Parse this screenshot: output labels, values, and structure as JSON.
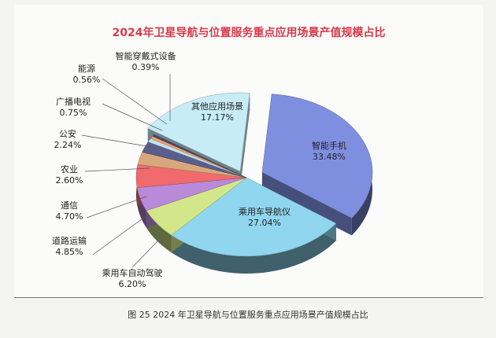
{
  "chart_data": {
    "type": "pie",
    "title": "2024年卫星导航与位置服务重点应用场景产值规模占比",
    "unit": "%",
    "slices": [
      {
        "label": "智能手机",
        "value": 33.48,
        "display": "33.48%",
        "color": "#7f8fe0",
        "exploded": true
      },
      {
        "label": "乘用车导航仪",
        "value": 27.04,
        "display": "27.04%",
        "color": "#8fd6ee"
      },
      {
        "label": "乘用车自动驾驶",
        "value": 6.2,
        "display": "6.20%",
        "color": "#d4e68a"
      },
      {
        "label": "道路运输",
        "value": 4.85,
        "display": "4.85%",
        "color": "#b98ad8"
      },
      {
        "label": "通信",
        "value": 4.7,
        "display": "4.70%",
        "color": "#f06a6e"
      },
      {
        "label": "农业",
        "value": 2.6,
        "display": "2.60%",
        "color": "#d8a87c"
      },
      {
        "label": "公安",
        "value": 2.24,
        "display": "2.24%",
        "color": "#5a5e8a"
      },
      {
        "label": "广播电视",
        "value": 0.75,
        "display": "0.75%",
        "color": "#bfe3f0"
      },
      {
        "label": "能源",
        "value": 0.56,
        "display": "0.56%",
        "color": "#f2a070"
      },
      {
        "label": "智能穿戴式设备",
        "value": 0.39,
        "display": "0.39%",
        "color": "#4a4a6a"
      },
      {
        "label": "其他应用场景",
        "value": 17.17,
        "display": "17.17%",
        "color": "#c8ecf6"
      }
    ]
  },
  "caption": "图 25  2024 年卫星导航与位置服务重点应用场景产值规模占比",
  "title_color": "#d83a4a"
}
